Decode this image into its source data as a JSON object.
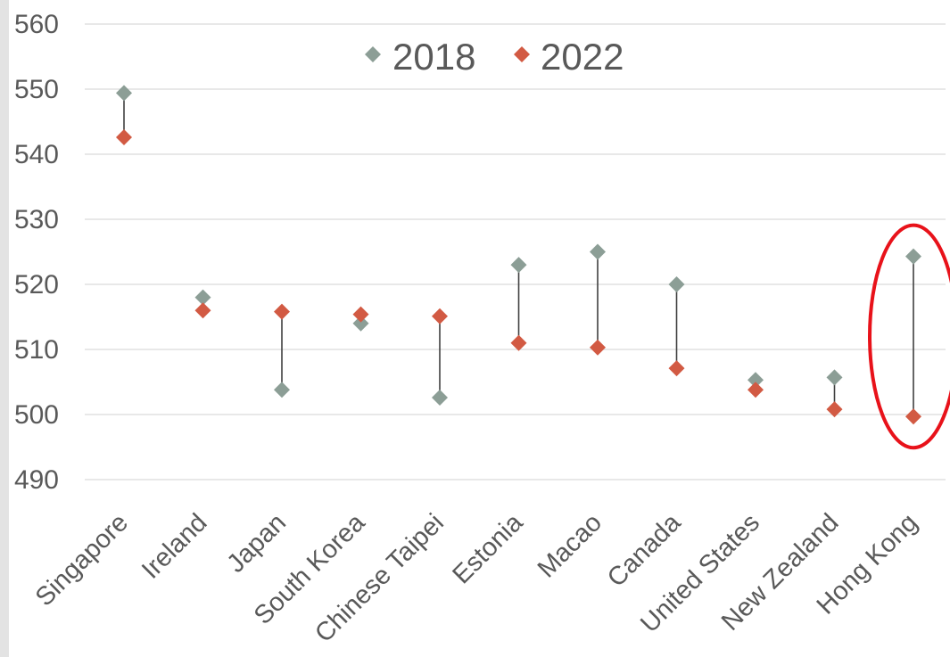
{
  "chart_data": {
    "type": "scatter",
    "categories": [
      "Singapore",
      "Ireland",
      "Japan",
      "South Korea",
      "Chinese Taipei",
      "Estonia",
      "Macao",
      "Canada",
      "United States",
      "New Zealand",
      "Hong Kong"
    ],
    "series": [
      {
        "name": "2018",
        "color": "#8c9e96",
        "values": [
          549.4,
          518.0,
          503.8,
          514.0,
          502.6,
          523.0,
          525.0,
          520.0,
          505.3,
          505.7,
          524.3
        ]
      },
      {
        "name": "2022",
        "color": "#d25a43",
        "values": [
          542.6,
          516.0,
          515.8,
          515.4,
          515.1,
          511.0,
          510.3,
          507.1,
          503.8,
          500.8,
          499.7
        ]
      }
    ],
    "ylim": [
      490,
      560
    ],
    "yticks": [
      490,
      500,
      510,
      520,
      530,
      540,
      550,
      560
    ],
    "grid": true,
    "legend_position": "top-center",
    "connector_color": "#404040",
    "highlight": {
      "category": "Hong Kong",
      "shape": "ellipse",
      "color": "#e8121a"
    }
  }
}
